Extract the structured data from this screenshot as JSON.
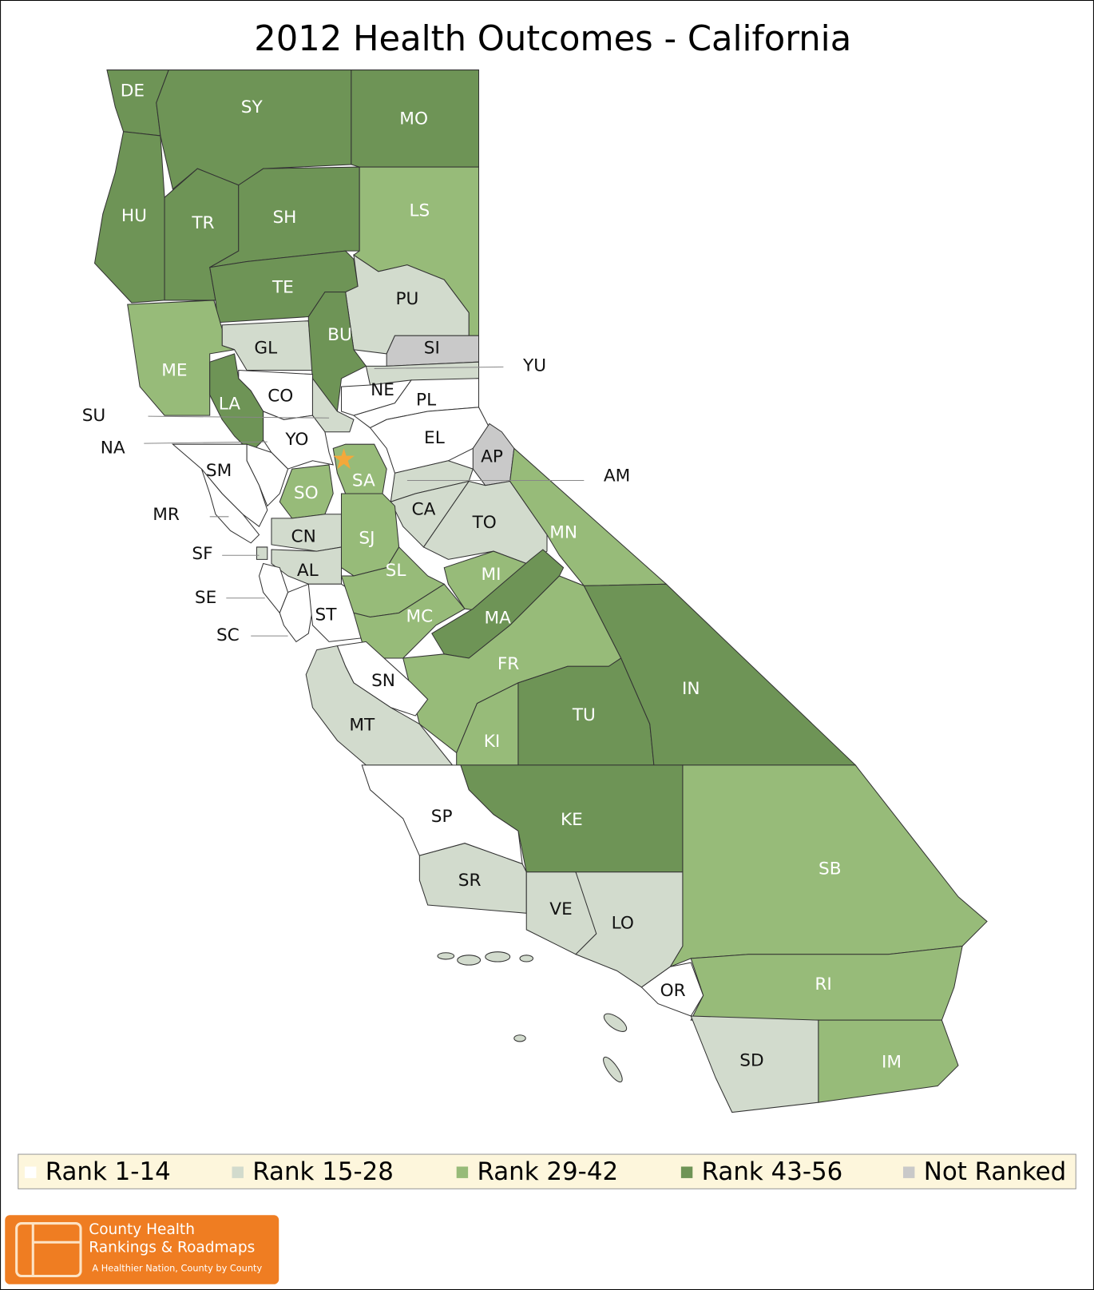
{
  "title": "2012 Health Outcomes - California",
  "counties": [
    {
      "label": "DE",
      "color": "#6e9456"
    },
    {
      "label": "SY",
      "color": "#6e9456"
    },
    {
      "label": "MO",
      "color": "#6e9456"
    },
    {
      "label": "HU",
      "color": "#6e9456"
    },
    {
      "label": "TR",
      "color": "#6e9456"
    },
    {
      "label": "SH",
      "color": "#6e9456"
    },
    {
      "label": "LS",
      "color": "#97bb79"
    },
    {
      "label": "TE",
      "color": "#6e9456"
    },
    {
      "label": "PU",
      "color": "#d2dbcd"
    },
    {
      "label": "GL",
      "color": "#d2dbcd"
    },
    {
      "label": "BU",
      "color": "#6e9456"
    },
    {
      "label": "SI",
      "color": "#c9c9c9"
    },
    {
      "label": "YU",
      "color": "#d2dbcd"
    },
    {
      "label": "NE",
      "color": "#ffffff"
    },
    {
      "label": "PL",
      "color": "#ffffff"
    },
    {
      "label": "EL",
      "color": "#ffffff"
    },
    {
      "label": "AP",
      "color": "#c9c9c9"
    },
    {
      "label": "AM",
      "color": "#d2dbcd"
    },
    {
      "label": "CA",
      "color": "#d2dbcd"
    },
    {
      "label": "TO",
      "color": "#d2dbcd"
    },
    {
      "label": "MN",
      "color": "#97bb79"
    },
    {
      "label": "ME",
      "color": "#97bb79"
    },
    {
      "label": "LA",
      "color": "#6e9456"
    },
    {
      "label": "CO",
      "color": "#ffffff"
    },
    {
      "label": "SU",
      "color": "#d2dbcd"
    },
    {
      "label": "YO",
      "color": "#ffffff"
    },
    {
      "label": "NA",
      "color": "#ffffff"
    },
    {
      "label": "SM",
      "color": "#ffffff"
    },
    {
      "label": "MR",
      "color": "#ffffff"
    },
    {
      "label": "SO",
      "color": "#97bb79"
    },
    {
      "label": "SA",
      "color": "#97bb79"
    },
    {
      "label": "SF",
      "color": "#d2dbcd"
    },
    {
      "label": "CN",
      "color": "#d2dbcd"
    },
    {
      "label": "AL",
      "color": "#d2dbcd"
    },
    {
      "label": "SE",
      "color": "#ffffff"
    },
    {
      "label": "SC",
      "color": "#ffffff"
    },
    {
      "label": "ST",
      "color": "#ffffff"
    },
    {
      "label": "SJ",
      "color": "#97bb79"
    },
    {
      "label": "SL",
      "color": "#97bb79"
    },
    {
      "label": "MC",
      "color": "#97bb79"
    },
    {
      "label": "MI",
      "color": "#97bb79"
    },
    {
      "label": "MA",
      "color": "#6e9456"
    },
    {
      "label": "FR",
      "color": "#97bb79"
    },
    {
      "label": "SN",
      "color": "#ffffff"
    },
    {
      "label": "MT",
      "color": "#d2dbcd"
    },
    {
      "label": "KI",
      "color": "#97bb79"
    },
    {
      "label": "TU",
      "color": "#6e9456"
    },
    {
      "label": "IN",
      "color": "#6e9456"
    },
    {
      "label": "KE",
      "color": "#6e9456"
    },
    {
      "label": "SP",
      "color": "#ffffff"
    },
    {
      "label": "SR",
      "color": "#d2dbcd"
    },
    {
      "label": "VE",
      "color": "#d2dbcd"
    },
    {
      "label": "LO",
      "color": "#d2dbcd"
    },
    {
      "label": "SB",
      "color": "#97bb79"
    },
    {
      "label": "OR",
      "color": "#ffffff"
    },
    {
      "label": "RI",
      "color": "#97bb79"
    },
    {
      "label": "SD",
      "color": "#d2dbcd"
    },
    {
      "label": "IM",
      "color": "#97bb79"
    }
  ],
  "legend": [
    {
      "label": "Rank 1-14",
      "color": "#ffffff"
    },
    {
      "label": "Rank 15-28",
      "color": "#d2dbcd"
    },
    {
      "label": "Rank 29-42",
      "color": "#97bb79"
    },
    {
      "label": "Rank 43-56",
      "color": "#6e9456"
    },
    {
      "label": "Not Ranked",
      "color": "#c9c9c9"
    }
  ],
  "logo": {
    "line1": "County Health",
    "line2": "Rankings & Roadmaps",
    "tagline": "A Healthier Nation, County by County"
  }
}
